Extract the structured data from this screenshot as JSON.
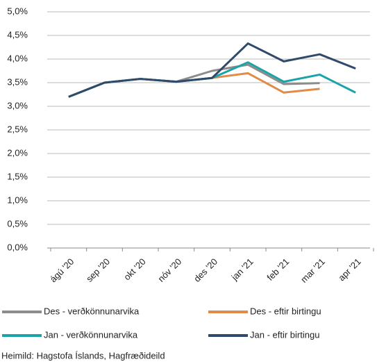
{
  "chart_data": {
    "type": "line",
    "categories": [
      "ágú '20",
      "sep '20",
      "okt '20",
      "nóv '20",
      "des '20",
      "jan '21",
      "feb '21",
      "mar '21",
      "apr '21"
    ],
    "series": [
      {
        "name": "Des - verðkönnunarvika",
        "color": "#8c8c8c",
        "values": [
          3.2,
          3.5,
          3.58,
          3.52,
          3.75,
          3.88,
          3.47,
          3.49,
          null
        ]
      },
      {
        "name": "Des - eftir birtingu",
        "color": "#e08b4a",
        "values": [
          3.2,
          3.5,
          3.58,
          3.52,
          3.6,
          3.7,
          3.29,
          3.37,
          null
        ]
      },
      {
        "name": "Jan - verðkönnunarvika",
        "color": "#1aa3a8",
        "values": [
          3.2,
          3.5,
          3.58,
          3.52,
          3.6,
          3.93,
          3.52,
          3.67,
          3.29
        ]
      },
      {
        "name": "Jan - eftir birtingu",
        "color": "#2f4a6b",
        "values": [
          3.2,
          3.5,
          3.58,
          3.52,
          3.6,
          4.33,
          3.95,
          4.1,
          3.8
        ]
      }
    ],
    "ylim": [
      0,
      5
    ],
    "yticks": [
      {
        "value": 0,
        "label": "0,0%"
      },
      {
        "value": 0.5,
        "label": "0,5%"
      },
      {
        "value": 1,
        "label": "1,0%"
      },
      {
        "value": 1.5,
        "label": "1,5%"
      },
      {
        "value": 2,
        "label": "2,0%"
      },
      {
        "value": 2.5,
        "label": "2,5%"
      },
      {
        "value": 3,
        "label": "3,0%"
      },
      {
        "value": 3.5,
        "label": "3,5%"
      },
      {
        "value": 4,
        "label": "4,0%"
      },
      {
        "value": 4.5,
        "label": "4,5%"
      },
      {
        "value": 5,
        "label": "5,0%"
      }
    ],
    "grid": true,
    "source": "Heimild: Hagstofa Íslands, Hagfræðideild"
  }
}
